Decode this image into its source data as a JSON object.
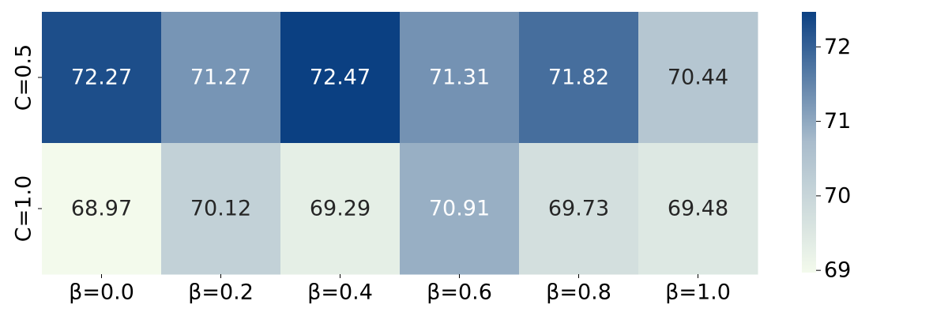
{
  "chart_data": {
    "type": "heatmap",
    "row_labels": [
      "C=0.5",
      "C=1.0"
    ],
    "col_labels": [
      "β=0.0",
      "β=0.2",
      "β=0.4",
      "β=0.6",
      "β=0.8",
      "β=1.0"
    ],
    "values": [
      [
        72.27,
        71.27,
        72.47,
        71.31,
        71.82,
        70.44
      ],
      [
        68.97,
        70.12,
        69.29,
        70.91,
        69.73,
        69.48
      ]
    ],
    "annotations": [
      [
        "72.27",
        "71.27",
        "72.47",
        "71.31",
        "71.82",
        "70.44"
      ],
      [
        "68.97",
        "70.12",
        "69.29",
        "70.91",
        "69.73",
        "69.48"
      ]
    ],
    "colorbar": {
      "min": 68.97,
      "max": 72.47,
      "ticks": [
        69,
        70,
        71,
        72
      ],
      "tick_labels": [
        "69",
        "70",
        "71",
        "72"
      ]
    },
    "colormap": {
      "low": "#f3faec",
      "mid": "#a9bccc",
      "high": "#0b4082"
    },
    "text_colors": {
      "light": "#ffffff",
      "dark": "#262626"
    },
    "title": "",
    "xlabel": "",
    "ylabel": ""
  }
}
